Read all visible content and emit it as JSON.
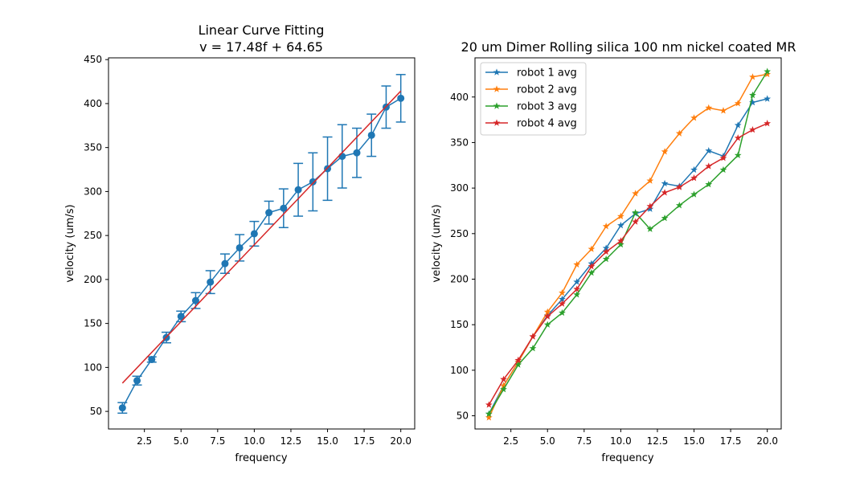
{
  "chart_data": [
    {
      "type": "line",
      "title": "Linear Curve Fitting\nv = 17.48f + 64.65",
      "title_lines": [
        "Linear Curve Fitting",
        "v = 17.48f + 64.65"
      ],
      "xlabel": "frequency",
      "ylabel": "velocity (um/s)",
      "xlim": [
        0.05,
        20.95
      ],
      "ylim": [
        30,
        452
      ],
      "xticks": [
        2.5,
        5.0,
        7.5,
        10.0,
        12.5,
        15.0,
        17.5,
        20.0
      ],
      "xtick_labels": [
        "2.5",
        "5.0",
        "7.5",
        "10.0",
        "12.5",
        "15.0",
        "17.5",
        "20.0"
      ],
      "yticks": [
        50,
        100,
        150,
        200,
        250,
        300,
        350,
        400,
        450
      ],
      "ytick_labels": [
        "50",
        "100",
        "150",
        "200",
        "250",
        "300",
        "350",
        "400",
        "450"
      ],
      "grid": false,
      "series": [
        {
          "kind": "errorbar",
          "color": "#1f77b4",
          "x": [
            1,
            2,
            3,
            4,
            5,
            6,
            7,
            8,
            9,
            10,
            11,
            12,
            13,
            14,
            15,
            16,
            17,
            18,
            19,
            20
          ],
          "y": [
            54,
            85,
            109,
            134,
            158,
            176,
            197,
            218,
            236,
            252,
            276,
            281,
            302,
            311,
            326,
            340,
            344,
            364,
            396,
            406
          ],
          "err": [
            6,
            5,
            3,
            6,
            6,
            9,
            13,
            11,
            15,
            14,
            13,
            22,
            30,
            33,
            36,
            36,
            28,
            24,
            24,
            27
          ]
        },
        {
          "kind": "fit",
          "color": "#d62728",
          "x": [
            1,
            20
          ],
          "y": [
            82.13,
            414.25
          ]
        }
      ]
    },
    {
      "type": "line",
      "title": "20 um Dimer Rolling silica 100 nm nickel coated MR",
      "xlabel": "frequency",
      "ylabel": "velocity (um/s)",
      "xlim": [
        0.05,
        20.95
      ],
      "ylim": [
        35.5,
        443
      ],
      "xticks": [
        2.5,
        5.0,
        7.5,
        10.0,
        12.5,
        15.0,
        17.5,
        20.0
      ],
      "xtick_labels": [
        "2.5",
        "5.0",
        "7.5",
        "10.0",
        "12.5",
        "15.0",
        "17.5",
        "20.0"
      ],
      "yticks": [
        50,
        100,
        150,
        200,
        250,
        300,
        350,
        400
      ],
      "ytick_labels": [
        "50",
        "100",
        "150",
        "200",
        "250",
        "300",
        "350",
        "400"
      ],
      "grid": false,
      "legend_position": "top-left",
      "series": [
        {
          "name": "robot 1 avg",
          "color": "#1f77b4",
          "x": [
            1,
            2,
            3,
            4,
            5,
            6,
            7,
            8,
            9,
            10,
            11,
            12,
            13,
            14,
            15,
            16,
            17,
            18,
            19,
            20
          ],
          "y": [
            52,
            83,
            109,
            137,
            160,
            178,
            197,
            217,
            234,
            259,
            272,
            277,
            305,
            302,
            320,
            341,
            335,
            369,
            394,
            398
          ]
        },
        {
          "name": "robot 2 avg",
          "color": "#ff7f0e",
          "x": [
            1,
            2,
            3,
            4,
            5,
            6,
            7,
            8,
            9,
            10,
            11,
            12,
            13,
            14,
            15,
            16,
            17,
            18,
            19,
            20
          ],
          "y": [
            48,
            83,
            109,
            137,
            164,
            185,
            216,
            233,
            258,
            269,
            294,
            308,
            340,
            360,
            377,
            388,
            385,
            393,
            422,
            425
          ]
        },
        {
          "name": "robot 3 avg",
          "color": "#2ca02c",
          "x": [
            1,
            2,
            3,
            4,
            5,
            6,
            7,
            8,
            9,
            10,
            11,
            12,
            13,
            14,
            15,
            16,
            17,
            18,
            19,
            20
          ],
          "y": [
            52,
            79,
            106,
            124,
            150,
            163,
            183,
            207,
            222,
            238,
            273,
            255,
            267,
            281,
            293,
            304,
            320,
            336,
            402,
            428
          ]
        },
        {
          "name": "robot 4 avg",
          "color": "#d62728",
          "x": [
            1,
            2,
            3,
            4,
            5,
            6,
            7,
            8,
            9,
            10,
            11,
            12,
            13,
            14,
            15,
            16,
            17,
            18,
            19,
            20
          ],
          "y": [
            62,
            90,
            111,
            137,
            159,
            173,
            189,
            214,
            230,
            242,
            263,
            280,
            295,
            301,
            311,
            324,
            333,
            355,
            364,
            371
          ]
        }
      ]
    }
  ]
}
